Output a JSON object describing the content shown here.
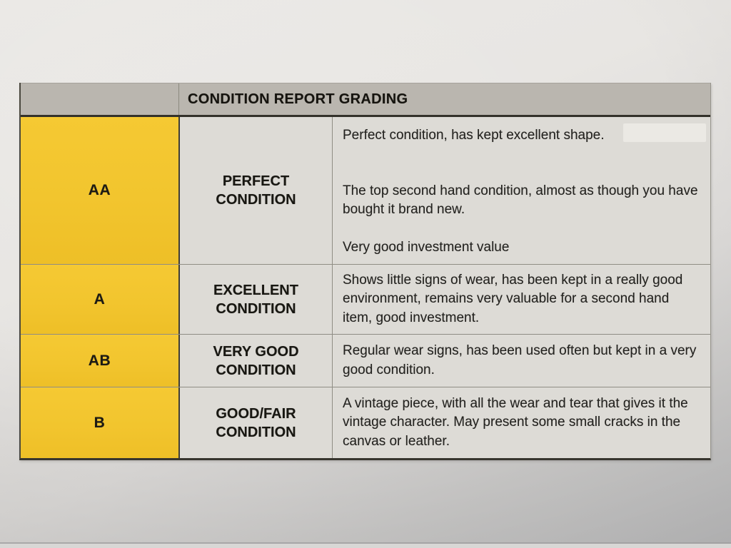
{
  "table": {
    "title": "CONDITION REPORT GRADING",
    "rows": [
      {
        "grade": "AA",
        "condition_line1": "PERFECT",
        "condition_line2": "CONDITION",
        "desc1": "Perfect condition, has kept excellent shape.",
        "desc2": "The top second hand condition, almost as though you have bought it brand new.",
        "desc3": "Very good investment value"
      },
      {
        "grade": "A",
        "condition_line1": "EXCELLENT",
        "condition_line2": "CONDITION",
        "desc1": "Shows little signs of wear, has been kept in a really good environment, remains very valuable for a second hand item, good investment."
      },
      {
        "grade": "AB",
        "condition_line1": "VERY GOOD",
        "condition_line2": "CONDITION",
        "desc1": "Regular wear signs, has been used often but kept in a very good condition."
      },
      {
        "grade": "B",
        "condition_line1": "GOOD/FAIR",
        "condition_line2": "CONDITION",
        "desc1": "A vintage piece, with all the wear and tear that gives it the vintage character. May present some small cracks in the canvas or leather."
      }
    ]
  },
  "colors": {
    "grade_column_yellow": "#F2C52E",
    "header_gray": "#BAB6AF",
    "cell_gray": "#DDDBD6",
    "paper_gray": "#E8E6E3",
    "text_black": "#1E1D1A"
  }
}
